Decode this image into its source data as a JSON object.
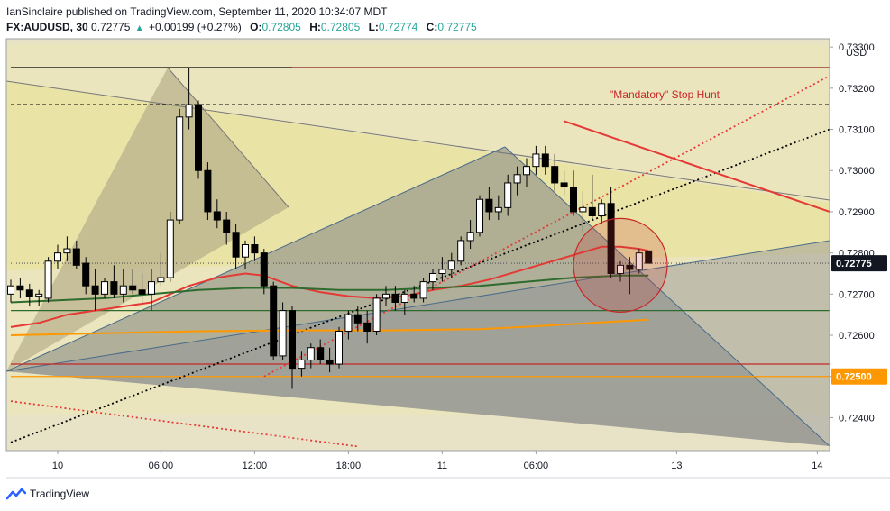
{
  "header": {
    "publisher_line": "IanSinclaire published on TradingView.com, September 11, 2020 10:34:07 MDT",
    "symbol": "FX:AUDUSD, 30",
    "last": "0.72775",
    "change": "+0.00199 (+0.27%)",
    "o_label": "O:",
    "o": "0.72805",
    "h_label": "H:",
    "h": "0.72805",
    "l_label": "L:",
    "l": "0.72774",
    "c_label": "C:",
    "c": "0.72775",
    "up_icon": "triangle-up-icon"
  },
  "footer": {
    "brand": "TradingView",
    "logo_icon": "tradingview-logo-icon"
  },
  "chart_data": {
    "type": "candlestick",
    "symbol": "FX:AUDUSD",
    "interval": "30",
    "currency_label": "USD",
    "ylim": [
      0.7232,
      0.7332
    ],
    "y_ticks": [
      "0.73300",
      "0.73200",
      "0.73100",
      "0.73000",
      "0.72900",
      "0.72800",
      "0.72700",
      "0.72600",
      "0.72500",
      "0.72400"
    ],
    "x_ticks": [
      {
        "bar": 5,
        "label": "10"
      },
      {
        "bar": 16,
        "label": "06:00"
      },
      {
        "bar": 26,
        "label": "12:00"
      },
      {
        "bar": 36,
        "label": "18:00"
      },
      {
        "bar": 46,
        "label": "11"
      },
      {
        "bar": 56,
        "label": "06:00"
      },
      {
        "bar": 71,
        "label": "13"
      },
      {
        "bar": 86,
        "label": "14"
      }
    ],
    "price_badges": [
      {
        "label": "0.72775",
        "value": 0.72775,
        "color": "#131722"
      },
      {
        "label": "0.72500",
        "value": 0.725,
        "color": "#ff9800"
      }
    ],
    "annotation": {
      "text": "\"Mandatory\" Stop Hunt",
      "color": "#c62828"
    },
    "candles": [
      {
        "o": 0.727,
        "h": 0.72735,
        "l": 0.7268,
        "c": 0.7272
      },
      {
        "o": 0.7272,
        "h": 0.7274,
        "l": 0.7269,
        "c": 0.7271
      },
      {
        "o": 0.7271,
        "h": 0.72725,
        "l": 0.7267,
        "c": 0.72695
      },
      {
        "o": 0.72695,
        "h": 0.7271,
        "l": 0.7267,
        "c": 0.727
      },
      {
        "o": 0.7269,
        "h": 0.7279,
        "l": 0.7268,
        "c": 0.7278
      },
      {
        "o": 0.7278,
        "h": 0.7282,
        "l": 0.7276,
        "c": 0.728
      },
      {
        "o": 0.728,
        "h": 0.7284,
        "l": 0.7278,
        "c": 0.7281
      },
      {
        "o": 0.7281,
        "h": 0.7283,
        "l": 0.7276,
        "c": 0.7277
      },
      {
        "o": 0.72775,
        "h": 0.7279,
        "l": 0.727,
        "c": 0.7272
      },
      {
        "o": 0.7272,
        "h": 0.7276,
        "l": 0.7266,
        "c": 0.727
      },
      {
        "o": 0.727,
        "h": 0.7274,
        "l": 0.7269,
        "c": 0.7273
      },
      {
        "o": 0.7273,
        "h": 0.7277,
        "l": 0.7269,
        "c": 0.727
      },
      {
        "o": 0.727,
        "h": 0.7276,
        "l": 0.7268,
        "c": 0.7272
      },
      {
        "o": 0.7272,
        "h": 0.7276,
        "l": 0.727,
        "c": 0.7271
      },
      {
        "o": 0.7271,
        "h": 0.7275,
        "l": 0.7268,
        "c": 0.727
      },
      {
        "o": 0.727,
        "h": 0.7276,
        "l": 0.7266,
        "c": 0.7273
      },
      {
        "o": 0.7273,
        "h": 0.728,
        "l": 0.7272,
        "c": 0.7274
      },
      {
        "o": 0.7274,
        "h": 0.729,
        "l": 0.7273,
        "c": 0.7288
      },
      {
        "o": 0.7288,
        "h": 0.7315,
        "l": 0.7287,
        "c": 0.7313
      },
      {
        "o": 0.7313,
        "h": 0.7325,
        "l": 0.731,
        "c": 0.7316
      },
      {
        "o": 0.7316,
        "h": 0.7317,
        "l": 0.7298,
        "c": 0.73
      },
      {
        "o": 0.73,
        "h": 0.7302,
        "l": 0.7288,
        "c": 0.729
      },
      {
        "o": 0.729,
        "h": 0.7293,
        "l": 0.7286,
        "c": 0.7288
      },
      {
        "o": 0.7288,
        "h": 0.729,
        "l": 0.7282,
        "c": 0.7285
      },
      {
        "o": 0.7285,
        "h": 0.7287,
        "l": 0.7276,
        "c": 0.7279
      },
      {
        "o": 0.7279,
        "h": 0.7283,
        "l": 0.7276,
        "c": 0.7282
      },
      {
        "o": 0.7282,
        "h": 0.7284,
        "l": 0.7278,
        "c": 0.728
      },
      {
        "o": 0.728,
        "h": 0.7281,
        "l": 0.727,
        "c": 0.7272
      },
      {
        "o": 0.7272,
        "h": 0.7273,
        "l": 0.7254,
        "c": 0.7255
      },
      {
        "o": 0.7255,
        "h": 0.7268,
        "l": 0.7254,
        "c": 0.7266
      },
      {
        "o": 0.7266,
        "h": 0.7267,
        "l": 0.7247,
        "c": 0.7252
      },
      {
        "o": 0.7252,
        "h": 0.7256,
        "l": 0.725,
        "c": 0.7254
      },
      {
        "o": 0.7254,
        "h": 0.7258,
        "l": 0.7252,
        "c": 0.7257
      },
      {
        "o": 0.7257,
        "h": 0.7259,
        "l": 0.7253,
        "c": 0.7254
      },
      {
        "o": 0.7254,
        "h": 0.7257,
        "l": 0.7251,
        "c": 0.7253
      },
      {
        "o": 0.7253,
        "h": 0.7262,
        "l": 0.7252,
        "c": 0.7261
      },
      {
        "o": 0.7261,
        "h": 0.7266,
        "l": 0.7259,
        "c": 0.7265
      },
      {
        "o": 0.7265,
        "h": 0.7267,
        "l": 0.7261,
        "c": 0.7263
      },
      {
        "o": 0.7263,
        "h": 0.7266,
        "l": 0.7258,
        "c": 0.7261
      },
      {
        "o": 0.7261,
        "h": 0.727,
        "l": 0.726,
        "c": 0.7269
      },
      {
        "o": 0.7269,
        "h": 0.7272,
        "l": 0.7267,
        "c": 0.727
      },
      {
        "o": 0.727,
        "h": 0.7272,
        "l": 0.7266,
        "c": 0.7268
      },
      {
        "o": 0.7268,
        "h": 0.7271,
        "l": 0.7265,
        "c": 0.727
      },
      {
        "o": 0.727,
        "h": 0.7272,
        "l": 0.7268,
        "c": 0.7269
      },
      {
        "o": 0.7269,
        "h": 0.7274,
        "l": 0.7268,
        "c": 0.7273
      },
      {
        "o": 0.7273,
        "h": 0.7276,
        "l": 0.7271,
        "c": 0.7275
      },
      {
        "o": 0.7275,
        "h": 0.7279,
        "l": 0.7273,
        "c": 0.7276
      },
      {
        "o": 0.7276,
        "h": 0.728,
        "l": 0.7274,
        "c": 0.7278
      },
      {
        "o": 0.7278,
        "h": 0.7284,
        "l": 0.7277,
        "c": 0.7283
      },
      {
        "o": 0.7283,
        "h": 0.7288,
        "l": 0.7281,
        "c": 0.7285
      },
      {
        "o": 0.7285,
        "h": 0.7294,
        "l": 0.7284,
        "c": 0.7293
      },
      {
        "o": 0.7293,
        "h": 0.7296,
        "l": 0.7288,
        "c": 0.729
      },
      {
        "o": 0.729,
        "h": 0.7294,
        "l": 0.7288,
        "c": 0.7291
      },
      {
        "o": 0.7291,
        "h": 0.7299,
        "l": 0.7289,
        "c": 0.7297
      },
      {
        "o": 0.7297,
        "h": 0.7301,
        "l": 0.7294,
        "c": 0.7299
      },
      {
        "o": 0.7299,
        "h": 0.7303,
        "l": 0.7296,
        "c": 0.7301
      },
      {
        "o": 0.7301,
        "h": 0.7306,
        "l": 0.7299,
        "c": 0.7304
      },
      {
        "o": 0.7304,
        "h": 0.7306,
        "l": 0.7299,
        "c": 0.7301
      },
      {
        "o": 0.7301,
        "h": 0.7304,
        "l": 0.7295,
        "c": 0.7297
      },
      {
        "o": 0.7297,
        "h": 0.73,
        "l": 0.7294,
        "c": 0.7296
      },
      {
        "o": 0.7296,
        "h": 0.73,
        "l": 0.7289,
        "c": 0.729
      },
      {
        "o": 0.729,
        "h": 0.7295,
        "l": 0.7285,
        "c": 0.7291
      },
      {
        "o": 0.7291,
        "h": 0.7299,
        "l": 0.7288,
        "c": 0.7289
      },
      {
        "o": 0.7289,
        "h": 0.7293,
        "l": 0.7287,
        "c": 0.7292
      },
      {
        "o": 0.7292,
        "h": 0.7296,
        "l": 0.7274,
        "c": 0.7275
      },
      {
        "o": 0.7275,
        "h": 0.7278,
        "l": 0.7273,
        "c": 0.7277
      },
      {
        "o": 0.7277,
        "h": 0.7279,
        "l": 0.727,
        "c": 0.7276
      },
      {
        "o": 0.7276,
        "h": 0.7281,
        "l": 0.7275,
        "c": 0.728
      },
      {
        "o": 0.72805,
        "h": 0.72805,
        "l": 0.72774,
        "c": 0.72775
      }
    ],
    "series": [
      {
        "name": "",
        "color": "#e53935",
        "points": [
          [
            0,
            0.7262
          ],
          [
            3,
            0.7263
          ],
          [
            6,
            0.7265
          ],
          [
            9,
            0.7266
          ],
          [
            12,
            0.7267
          ],
          [
            15,
            0.7268
          ],
          [
            17,
            0.727
          ],
          [
            19,
            0.7272
          ],
          [
            22,
            0.7274
          ],
          [
            25,
            0.7275
          ],
          [
            27,
            0.72745
          ],
          [
            30,
            0.7272
          ],
          [
            33,
            0.72705
          ],
          [
            36,
            0.72695
          ],
          [
            39,
            0.7269
          ],
          [
            42,
            0.72695
          ],
          [
            45,
            0.7271
          ],
          [
            48,
            0.7272
          ],
          [
            51,
            0.72735
          ],
          [
            54,
            0.72755
          ],
          [
            57,
            0.72775
          ],
          [
            60,
            0.72795
          ],
          [
            63,
            0.72815
          ],
          [
            65,
            0.72815
          ],
          [
            67,
            0.7281
          ],
          [
            68,
            0.72805
          ]
        ]
      },
      {
        "name": "",
        "color": "#2e6b2e",
        "points": [
          [
            0,
            0.7268
          ],
          [
            5,
            0.72685
          ],
          [
            10,
            0.7269
          ],
          [
            15,
            0.727
          ],
          [
            20,
            0.7271
          ],
          [
            25,
            0.72715
          ],
          [
            30,
            0.72715
          ],
          [
            35,
            0.7271
          ],
          [
            40,
            0.7271
          ],
          [
            45,
            0.72715
          ],
          [
            50,
            0.7272
          ],
          [
            55,
            0.7273
          ],
          [
            60,
            0.7274
          ],
          [
            65,
            0.72745
          ],
          [
            68,
            0.72745
          ]
        ]
      },
      {
        "name": "",
        "color": "#ff9800",
        "points": [
          [
            0,
            0.726
          ],
          [
            10,
            0.72605
          ],
          [
            20,
            0.7261
          ],
          [
            30,
            0.72612
          ],
          [
            40,
            0.72612
          ],
          [
            50,
            0.72615
          ],
          [
            56,
            0.72622
          ],
          [
            62,
            0.7263
          ],
          [
            68,
            0.72638
          ]
        ]
      }
    ],
    "trendlines": [
      {
        "from": [
          0,
          0.7234
        ],
        "to": [
          90,
          0.731
        ],
        "color": "#000000",
        "style": "dotted"
      },
      {
        "from": [
          27,
          0.725
        ],
        "to": [
          90,
          0.7323
        ],
        "color": "#e53935",
        "style": "dotted"
      },
      {
        "from": [
          0,
          0.7244
        ],
        "to": [
          37,
          0.7233
        ],
        "color": "#e53935",
        "style": "dotted"
      },
      {
        "from": [
          59,
          0.7312
        ],
        "to": [
          90,
          0.729
        ],
        "color": "#e53935",
        "style": "solid"
      }
    ],
    "horizontal_lines": [
      {
        "value": 0.7316,
        "x_from": 0,
        "x_to": 90,
        "color": "#000000",
        "style": "dashed"
      },
      {
        "value": 0.7325,
        "x_from": 30,
        "x_to": 90,
        "color": "#8b1a1a",
        "style": "solid"
      },
      {
        "value": 0.7325,
        "x_from": 0,
        "x_to": 30,
        "color": "#000000",
        "style": "solid"
      },
      {
        "value": 0.7266,
        "x_from": 0,
        "x_to": 90,
        "color": "#2e6b2e",
        "style": "solid"
      },
      {
        "value": 0.7253,
        "x_from": 0,
        "x_to": 90,
        "color": "#c62828",
        "style": "solid"
      },
      {
        "value": 0.725,
        "x_from": 0,
        "x_to": 90,
        "color": "#ff9800",
        "style": "solid"
      },
      {
        "value": 0.72775,
        "x_from": 0,
        "x_to": 90,
        "color": "#555555",
        "style": "dotted"
      }
    ],
    "zone_circle": {
      "center_bar": 65,
      "center_value": 0.7277,
      "color": "#c62828"
    }
  }
}
